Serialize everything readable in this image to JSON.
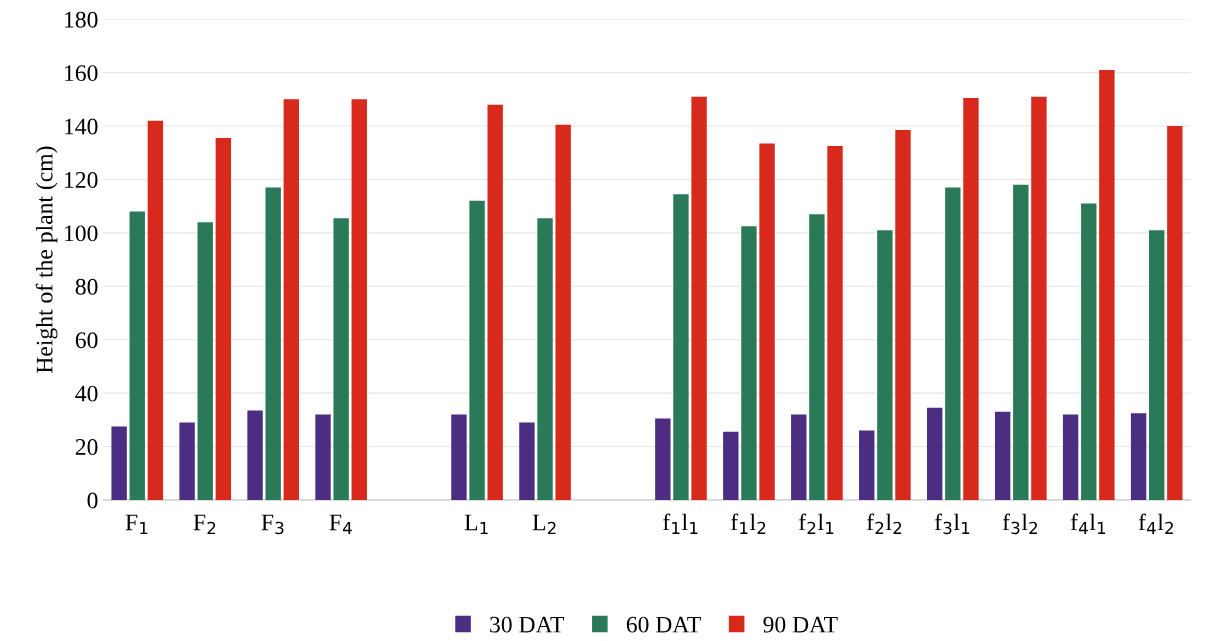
{
  "chart_data": {
    "type": "bar",
    "ylabel": "Height of the plant (cm)",
    "categories": [
      "F$_{1}$",
      "F$_{2}$",
      "F$_{3}$",
      "F$_{4}$",
      null,
      "L$_{1}$",
      "L$_{2}$",
      null,
      "f$_{1}$l$_{1}$",
      "f$_{1}$l$_{2}$",
      "f$_{2}$l$_{1}$",
      "f$_{2}$l$_{2}$",
      "f$_{3}$l$_{1}$",
      "f$_{3}$l$_{2}$",
      "f$_{4}$l$_{1}$",
      "f$_{4}$l$_{2}$"
    ],
    "series": [
      {
        "name": "30 DAT",
        "color": "#4b2d82",
        "values": [
          27.5,
          29,
          33.5,
          32,
          null,
          32,
          29,
          null,
          30.5,
          25.5,
          32,
          26,
          34.5,
          33,
          32,
          32.5
        ]
      },
      {
        "name": "60 DAT",
        "color": "#2a7a5a",
        "values": [
          108,
          104,
          117,
          105.5,
          null,
          112,
          105.5,
          null,
          114.5,
          102.5,
          107,
          101,
          117,
          118,
          111,
          101
        ]
      },
      {
        "name": "90 DAT",
        "color": "#d8291d",
        "values": [
          142,
          135.5,
          150,
          150,
          null,
          148,
          140.5,
          null,
          151,
          133.5,
          132.5,
          138.5,
          150.5,
          151,
          161,
          140
        ]
      }
    ],
    "ylim": [
      0,
      180
    ],
    "yticks": [
      0,
      20,
      40,
      60,
      80,
      100,
      120,
      140,
      160,
      180
    ],
    "grid": "y",
    "legend": "bottom"
  }
}
